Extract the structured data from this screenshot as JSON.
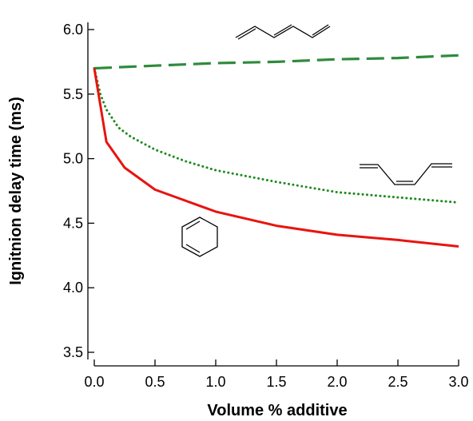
{
  "chart_data": {
    "type": "line",
    "title": "",
    "xlabel": "Volume % additive",
    "ylabel": "Ignitnion delay time (ms)",
    "xlim": [
      0,
      3.0
    ],
    "ylim": [
      3.5,
      6.0
    ],
    "xticks": [
      0.0,
      0.5,
      1.0,
      1.5,
      2.0,
      2.5,
      3.0
    ],
    "xtick_labels": [
      "0.0",
      "0.5",
      "1.0",
      "1.5",
      "2.0",
      "2.5",
      "3.0"
    ],
    "yticks": [
      3.5,
      4.0,
      4.5,
      5.0,
      5.5,
      6.0
    ],
    "ytick_labels": [
      "3.5",
      "4.0",
      "4.5",
      "5.0",
      "5.5",
      "6.0"
    ],
    "grid": false,
    "legend": "none",
    "series": [
      {
        "id": "triene-trans",
        "color": "#2e8b3c",
        "style": "dashed",
        "x": [
          0,
          0.5,
          1.0,
          1.5,
          2.0,
          2.5,
          3.0
        ],
        "y": [
          5.7,
          5.72,
          5.74,
          5.75,
          5.77,
          5.78,
          5.8
        ]
      },
      {
        "id": "triene-cis",
        "color": "#1e8a1e",
        "style": "dotted",
        "x": [
          0,
          0.05,
          0.1,
          0.2,
          0.3,
          0.5,
          0.75,
          1.0,
          1.5,
          2.0,
          2.5,
          3.0
        ],
        "y": [
          5.7,
          5.5,
          5.38,
          5.24,
          5.17,
          5.07,
          4.98,
          4.91,
          4.82,
          4.74,
          4.7,
          4.66
        ]
      },
      {
        "id": "cyclohexadiene",
        "color": "#e8140f",
        "style": "solid",
        "x": [
          0,
          0.1,
          0.25,
          0.5,
          1.0,
          1.5,
          2.0,
          2.5,
          3.0
        ],
        "y": [
          5.7,
          5.13,
          4.93,
          4.76,
          4.59,
          4.48,
          4.41,
          4.37,
          4.32
        ]
      }
    ],
    "annotations": [
      {
        "id": "molecule-trans-hexatriene",
        "series": "triene-trans",
        "kind": "structure"
      },
      {
        "id": "molecule-cis-hexatriene",
        "series": "triene-cis",
        "kind": "structure"
      },
      {
        "id": "molecule-cyclohexadiene",
        "series": "cyclohexadiene",
        "kind": "structure"
      }
    ]
  }
}
